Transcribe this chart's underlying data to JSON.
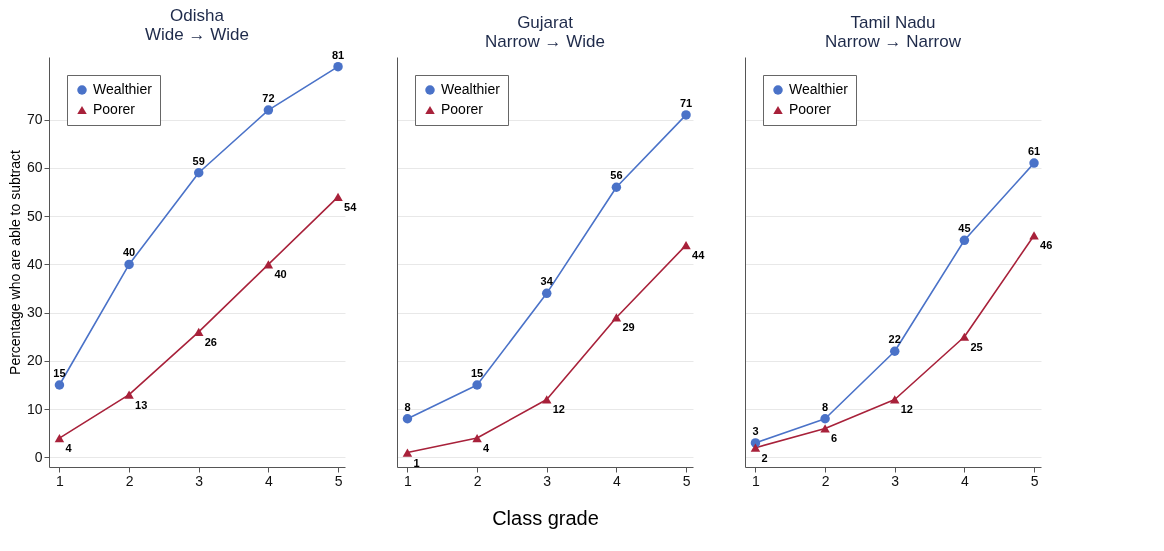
{
  "chart_data": [
    {
      "type": "line",
      "title": "Odisha",
      "subtitle": "Wide → Wide",
      "ylabel": "Percentage who are able to subtract",
      "x": [
        1,
        2,
        3,
        4,
        5
      ],
      "xlim": [
        0.85,
        5.1
      ],
      "xticks": [
        1,
        2,
        3,
        4,
        5
      ],
      "ylim": [
        -2,
        83
      ],
      "yticks": [
        0,
        10,
        20,
        30,
        40,
        50,
        60,
        70
      ],
      "grid": "y",
      "legend": "top left",
      "data_labels": true,
      "series": [
        {
          "name": "Wealthier",
          "color": "#4a72c8",
          "marker": "circle",
          "values": [
            15,
            40,
            59,
            72,
            81
          ]
        },
        {
          "name": "Poorer",
          "color": "#a8213a",
          "marker": "triangle",
          "values": [
            4,
            13,
            26,
            40,
            54
          ]
        }
      ]
    },
    {
      "type": "line",
      "title": "Gujarat",
      "subtitle": "Narrow → Wide",
      "xlabel": "Class grade",
      "x": [
        1,
        2,
        3,
        4,
        5
      ],
      "xlim": [
        0.85,
        5.1
      ],
      "xticks": [
        1,
        2,
        3,
        4,
        5
      ],
      "ylim": [
        -2,
        83
      ],
      "yticks": [
        0,
        10,
        20,
        30,
        40,
        50,
        60,
        70
      ],
      "tick_labels": "x",
      "grid": "y",
      "legend": "top left",
      "data_labels": true,
      "series": [
        {
          "name": "Wealthier",
          "color": "#4a72c8",
          "marker": "circle",
          "values": [
            8,
            15,
            34,
            56,
            71
          ]
        },
        {
          "name": "Poorer",
          "color": "#a8213a",
          "marker": "triangle",
          "values": [
            1,
            4,
            12,
            29,
            44
          ]
        }
      ]
    },
    {
      "type": "line",
      "title": "Tamil Nadu",
      "subtitle": "Narrow → Narrow",
      "x": [
        1,
        2,
        3,
        4,
        5
      ],
      "xlim": [
        0.85,
        5.1
      ],
      "xticks": [
        1,
        2,
        3,
        4,
        5
      ],
      "ylim": [
        -2,
        83
      ],
      "yticks": [
        0,
        10,
        20,
        30,
        40,
        50,
        60,
        70
      ],
      "tick_labels": "x",
      "grid": "y",
      "legend": "top left",
      "data_labels": true,
      "series": [
        {
          "name": "Wealthier",
          "color": "#4a72c8",
          "marker": "circle",
          "values": [
            3,
            8,
            22,
            45,
            61
          ]
        },
        {
          "name": "Poorer",
          "color": "#a8213a",
          "marker": "triangle",
          "values": [
            2,
            6,
            12,
            25,
            46
          ]
        }
      ]
    }
  ]
}
